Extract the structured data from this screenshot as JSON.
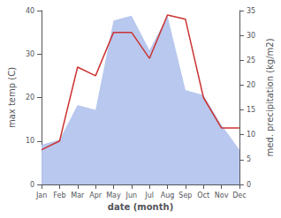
{
  "chart_data": {
    "type": "line",
    "xlabel": "date (month)",
    "ylabel": "max temp (C)",
    "y2label": "med. precipitation (kg/m2)",
    "categories": [
      "Jan",
      "Feb",
      "Mar",
      "Apr",
      "May",
      "Jun",
      "Jul",
      "Aug",
      "Sep",
      "Oct",
      "Nov",
      "Dec"
    ],
    "series": [
      {
        "type": "area",
        "axis": "y2",
        "color": "#b8c8ee",
        "values": [
          8,
          9,
          16,
          15,
          33,
          34,
          27,
          34,
          19,
          18,
          12,
          7
        ]
      },
      {
        "type": "line",
        "color": "#cc3333",
        "values": [
          8,
          10,
          27,
          25,
          35,
          35,
          29,
          39,
          38,
          20,
          13,
          13
        ]
      }
    ],
    "ylim": [
      0,
      40
    ],
    "yticks": [
      0,
      10,
      20,
      30,
      40
    ],
    "y2lim": [
      0,
      35
    ],
    "y2ticks": [
      0,
      5,
      10,
      15,
      20,
      25,
      30,
      35
    ],
    "grid": false
  }
}
